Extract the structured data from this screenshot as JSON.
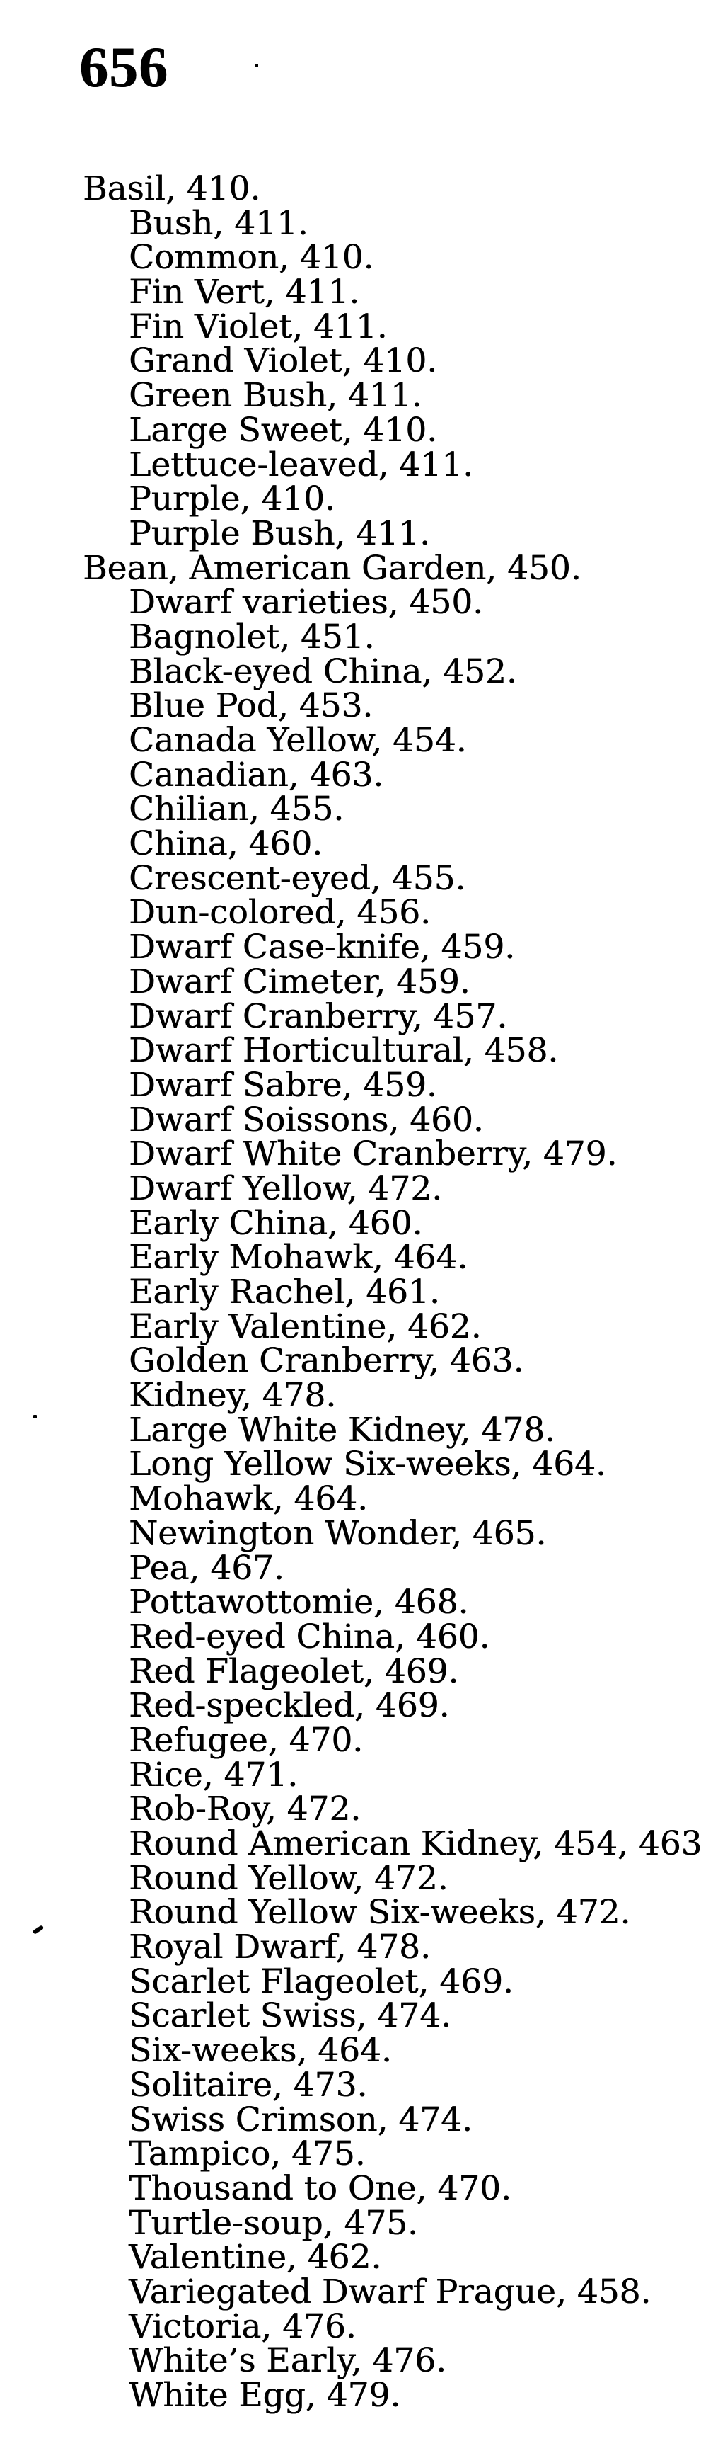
{
  "page": {
    "number": "656"
  },
  "index_entries": [
    {
      "text": "Basil, 410.",
      "indent": 0
    },
    {
      "text": "Bush, 411.",
      "indent": 1
    },
    {
      "text": "Common, 410.",
      "indent": 1
    },
    {
      "text": "Fin Vert, 411.",
      "indent": 1
    },
    {
      "text": "Fin Violet, 411.",
      "indent": 1
    },
    {
      "text": "Grand Violet, 410.",
      "indent": 1
    },
    {
      "text": "Green Bush, 411.",
      "indent": 1
    },
    {
      "text": "Large Sweet, 410.",
      "indent": 1
    },
    {
      "text": "Lettuce-leaved, 411.",
      "indent": 1
    },
    {
      "text": "Purple, 410.",
      "indent": 1
    },
    {
      "text": "Purple Bush, 411.",
      "indent": 1
    },
    {
      "text": "Bean, American Garden, 450.",
      "indent": 0
    },
    {
      "text": "Dwarf varieties, 450.",
      "indent": 1
    },
    {
      "text": "Bagnolet, 451.",
      "indent": 1
    },
    {
      "text": "Black-eyed China, 452.",
      "indent": 1
    },
    {
      "text": "Blue Pod, 453.",
      "indent": 1
    },
    {
      "text": "Canada Yellow, 454.",
      "indent": 1
    },
    {
      "text": "Canadian, 463.",
      "indent": 1
    },
    {
      "text": "Chilian, 455.",
      "indent": 1
    },
    {
      "text": "China, 460.",
      "indent": 1
    },
    {
      "text": "Crescent-eyed, 455.",
      "indent": 1
    },
    {
      "text": "Dun-colored, 456.",
      "indent": 1
    },
    {
      "text": "Dwarf Case-knife, 459.",
      "indent": 1
    },
    {
      "text": "Dwarf Cimeter, 459.",
      "indent": 1
    },
    {
      "text": "Dwarf Cranberry, 457.",
      "indent": 1
    },
    {
      "text": "Dwarf Horticultural, 458.",
      "indent": 1
    },
    {
      "text": "Dwarf Sabre, 459.",
      "indent": 1
    },
    {
      "text": "Dwarf Soissons, 460.",
      "indent": 1
    },
    {
      "text": "Dwarf White Cranberry, 479.",
      "indent": 1
    },
    {
      "text": "Dwarf Yellow, 472.",
      "indent": 1
    },
    {
      "text": "Early China, 460.",
      "indent": 1
    },
    {
      "text": "Early Mohawk, 464.",
      "indent": 1
    },
    {
      "text": "Early Rachel, 461.",
      "indent": 1
    },
    {
      "text": "Early Valentine, 462.",
      "indent": 1
    },
    {
      "text": "Golden Cranberry, 463.",
      "indent": 1
    },
    {
      "text": "Kidney, 478.",
      "indent": 1
    },
    {
      "text": "Large White Kidney, 478.",
      "indent": 1
    },
    {
      "text": "Long Yellow Six-weeks, 464.",
      "indent": 1
    },
    {
      "text": "Mohawk, 464.",
      "indent": 1
    },
    {
      "text": "Newington Wonder, 465.",
      "indent": 1
    },
    {
      "text": "Pea, 467.",
      "indent": 1
    },
    {
      "text": "Pottawottomie, 468.",
      "indent": 1
    },
    {
      "text": "Red-eyed China, 460.",
      "indent": 1
    },
    {
      "text": "Red Flageolet, 469.",
      "indent": 1
    },
    {
      "text": "Red-speckled, 469.",
      "indent": 1
    },
    {
      "text": "Refugee, 470.",
      "indent": 1
    },
    {
      "text": "Rice, 471.",
      "indent": 1
    },
    {
      "text": "Rob-Roy, 472.",
      "indent": 1
    },
    {
      "text": "Round American Kidney, 454, 463.",
      "indent": 1
    },
    {
      "text": "Round Yellow, 472.",
      "indent": 1
    },
    {
      "text": "Round Yellow Six-weeks, 472.",
      "indent": 1
    },
    {
      "text": "Royal Dwarf, 478.",
      "indent": 1
    },
    {
      "text": "Scarlet Flageolet, 469.",
      "indent": 1
    },
    {
      "text": "Scarlet Swiss, 474.",
      "indent": 1
    },
    {
      "text": "Six-weeks, 464.",
      "indent": 1
    },
    {
      "text": "Solitaire, 473.",
      "indent": 1
    },
    {
      "text": "Swiss Crimson, 474.",
      "indent": 1
    },
    {
      "text": "Tampico, 475.",
      "indent": 1
    },
    {
      "text": "Thousand to One, 470.",
      "indent": 1
    },
    {
      "text": "Turtle-soup, 475.",
      "indent": 1
    },
    {
      "text": "Valentine, 462.",
      "indent": 1
    },
    {
      "text": "Variegated Dwarf Prague, 458.",
      "indent": 1
    },
    {
      "text": "Victoria, 476.",
      "indent": 1
    },
    {
      "text": "White’s Early, 476.",
      "indent": 1
    },
    {
      "text": "White Egg, 479.",
      "indent": 1
    }
  ]
}
